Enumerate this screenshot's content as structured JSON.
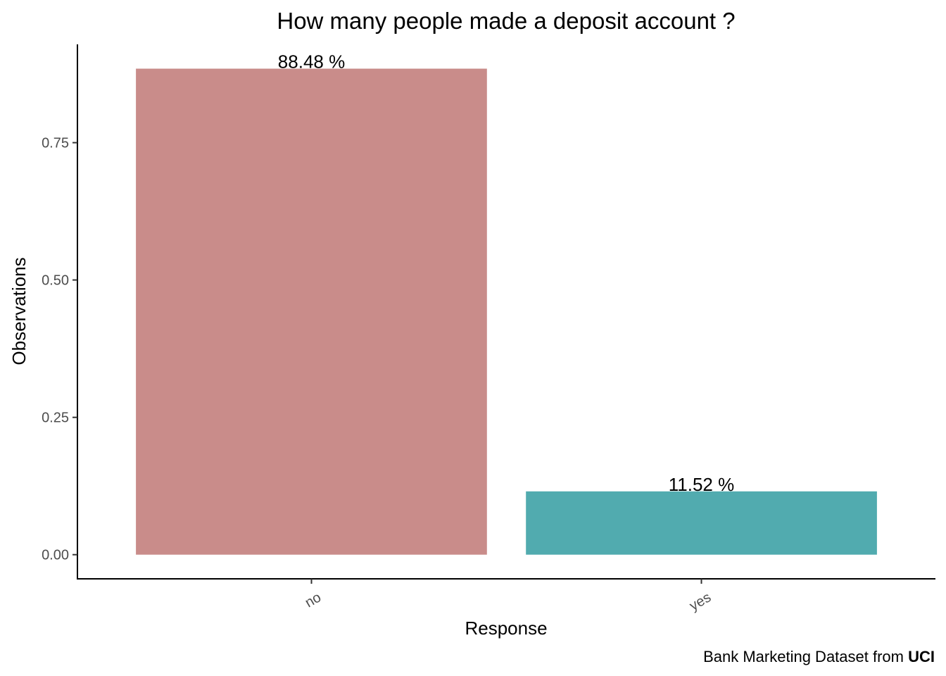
{
  "chart_data": {
    "type": "bar",
    "title": "How many people made a deposit account ?",
    "xlabel": "Response",
    "ylabel": "Observations",
    "categories": [
      "no",
      "yes"
    ],
    "values": [
      0.8848,
      0.1152
    ],
    "data_labels": [
      "88.48 %",
      "11.52 %"
    ],
    "colors": [
      "#C98C8A",
      "#51ABAF"
    ],
    "ylim": [
      -0.044,
      0.929
    ],
    "yticks": [
      0,
      0.25,
      0.5,
      0.75
    ],
    "ytick_labels": [
      "0.00",
      "0.25",
      "0.50",
      "0.75"
    ],
    "grid": false,
    "legend": "none",
    "caption_prefix": "Bank Marketing Dataset from ",
    "caption_bold": "UCI"
  }
}
